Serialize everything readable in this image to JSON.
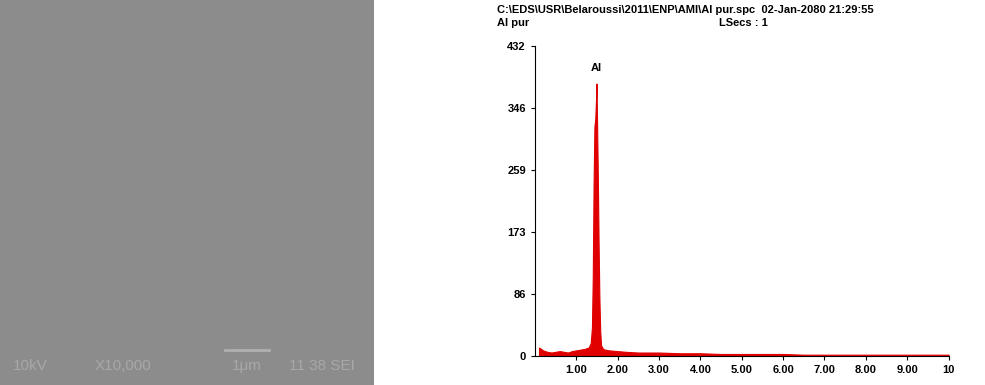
{
  "micrograph": {
    "texts": [
      "10kV",
      "X10,000",
      "1μm",
      "11 38 SEI"
    ]
  },
  "chart_data": {
    "type": "area",
    "title": "C:\\EDS\\USR\\Belaroussi\\2011\\ENP\\AMI\\Al pur.spc  02-Jan-2080 21:29:55",
    "subtitle": "Al pur",
    "live_time": "LSecs : 1",
    "x": [
      0.1,
      0.2,
      0.3,
      0.4,
      0.5,
      0.6,
      0.7,
      0.8,
      0.9,
      1.0,
      1.1,
      1.2,
      1.3,
      1.35,
      1.38,
      1.4,
      1.42,
      1.44,
      1.46,
      1.48,
      1.49,
      1.5,
      1.52,
      1.54,
      1.56,
      1.58,
      1.6,
      1.65,
      1.7,
      1.8,
      2.0,
      2.2,
      2.5,
      3.0,
      3.5,
      4.0,
      4.5,
      5.0,
      5.5,
      6.0,
      6.5,
      7.0,
      7.5,
      8.0,
      8.5,
      9.0,
      9.5,
      10.0
    ],
    "values": [
      12,
      8,
      6,
      5,
      6,
      7,
      6,
      5,
      7,
      8,
      9,
      10,
      12,
      18,
      40,
      110,
      240,
      320,
      330,
      360,
      380,
      340,
      260,
      160,
      80,
      35,
      15,
      10,
      9,
      8,
      7,
      6,
      5,
      5,
      4,
      4,
      3,
      3,
      3,
      3,
      2,
      2,
      2,
      2,
      2,
      2,
      2,
      2
    ],
    "color": "#e00000",
    "annotations": [
      {
        "text": "Al",
        "x": 1.49,
        "y": 395
      }
    ],
    "xlim": [
      0,
      10
    ],
    "xticks": [
      {
        "value": 1,
        "label": "1.00"
      },
      {
        "value": 2,
        "label": "2.00"
      },
      {
        "value": 3,
        "label": "3.00"
      },
      {
        "value": 4,
        "label": "4.00"
      },
      {
        "value": 5,
        "label": "5.00"
      },
      {
        "value": 6,
        "label": "6.00"
      },
      {
        "value": 7,
        "label": "7.00"
      },
      {
        "value": 8,
        "label": "8.00"
      },
      {
        "value": 9,
        "label": "9.00"
      },
      {
        "value": 10,
        "label": "10"
      }
    ],
    "ylim": [
      0,
      432
    ],
    "yticks": [
      0,
      86,
      173,
      259,
      346,
      432
    ],
    "grid": false
  }
}
